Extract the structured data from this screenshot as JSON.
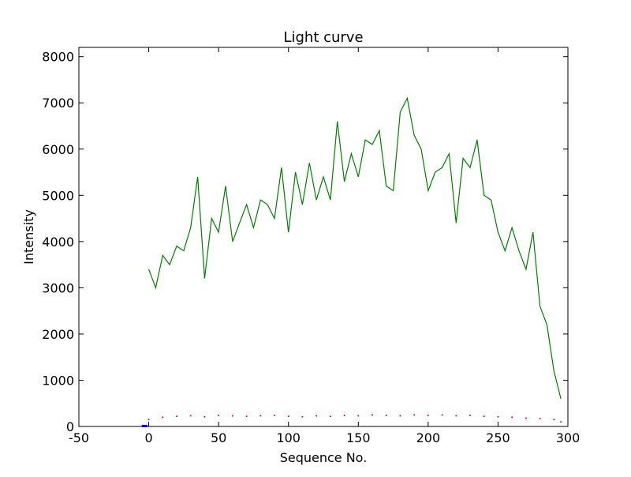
{
  "chart_data": {
    "type": "line",
    "title": "Light curve",
    "xlabel": "Sequence No.",
    "ylabel": "Intensity",
    "xlim": [
      -50,
      300
    ],
    "ylim": [
      0,
      8200
    ],
    "xticks": [
      -50,
      0,
      50,
      100,
      150,
      200,
      250,
      300
    ],
    "yticks": [
      0,
      1000,
      2000,
      3000,
      4000,
      5000,
      6000,
      7000,
      8000
    ],
    "grid": false,
    "legend": "none",
    "series": [
      {
        "style": "solid",
        "color": "#008000",
        "x": [
          0,
          5,
          10,
          15,
          20,
          25,
          30,
          35,
          40,
          45,
          50,
          55,
          60,
          65,
          70,
          75,
          80,
          85,
          90,
          95,
          100,
          105,
          110,
          115,
          120,
          125,
          130,
          135,
          140,
          145,
          150,
          155,
          160,
          165,
          170,
          175,
          180,
          185,
          190,
          195,
          200,
          205,
          210,
          215,
          220,
          225,
          230,
          235,
          240,
          245,
          250,
          255,
          260,
          265,
          270,
          275,
          280,
          285,
          290,
          295
        ],
        "y": [
          3400,
          3000,
          3700,
          3500,
          3900,
          3800,
          4300,
          5400,
          3200,
          4500,
          4200,
          5200,
          4000,
          4400,
          4800,
          4300,
          4900,
          4800,
          4500,
          5600,
          4200,
          5500,
          4800,
          5700,
          4900,
          5400,
          4900,
          6600,
          5300,
          5900,
          5400,
          6200,
          6100,
          6400,
          5200,
          5100,
          6800,
          7100,
          6300,
          6000,
          5100,
          5500,
          5600,
          5900,
          4400,
          5800,
          5600,
          6200,
          5000,
          4900,
          4200,
          3800,
          4300,
          3800,
          3400,
          4200,
          2600,
          2200,
          1200,
          600
        ]
      },
      {
        "style": "dotted",
        "color": "#ff0000",
        "x": [
          0,
          10,
          20,
          30,
          40,
          50,
          60,
          70,
          80,
          90,
          100,
          110,
          120,
          130,
          140,
          150,
          160,
          170,
          180,
          190,
          200,
          210,
          220,
          230,
          240,
          250,
          260,
          270,
          280,
          290,
          295
        ],
        "y": [
          150,
          200,
          220,
          230,
          210,
          240,
          230,
          220,
          230,
          240,
          220,
          210,
          230,
          220,
          240,
          230,
          250,
          240,
          230,
          250,
          240,
          250,
          230,
          240,
          220,
          210,
          200,
          180,
          170,
          150,
          100
        ]
      },
      {
        "style": "solid",
        "color": "#0000ff",
        "x": [
          -5,
          -1
        ],
        "y": [
          10,
          10
        ]
      }
    ]
  }
}
